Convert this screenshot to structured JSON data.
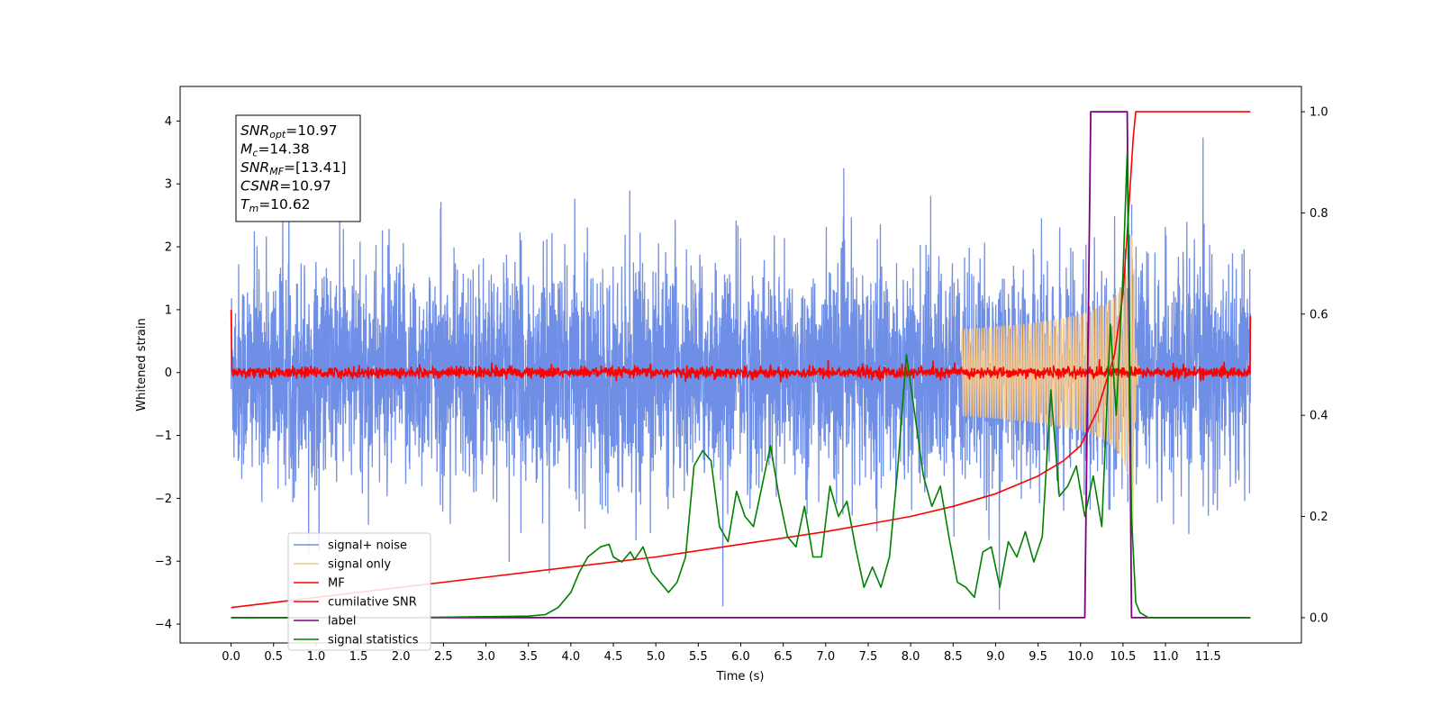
{
  "chart_data": {
    "type": "line",
    "xlabel": "Time (s)",
    "ylabel": "Whitened strain",
    "xlim": [
      -0.6,
      12.6
    ],
    "ylim": [
      -4.3,
      4.55
    ],
    "y2lim": [
      -0.05,
      1.05
    ],
    "x_ticks": [
      "0.0",
      "0.5",
      "1.0",
      "1.5",
      "2.0",
      "2.5",
      "3.0",
      "3.5",
      "4.0",
      "4.5",
      "5.0",
      "5.5",
      "6.0",
      "6.5",
      "7.0",
      "7.5",
      "8.0",
      "8.5",
      "9.0",
      "9.5",
      "10.0",
      "10.5",
      "11.0",
      "11.5"
    ],
    "y_ticks": [
      "4",
      "3",
      "2",
      "1",
      "0",
      "−1",
      "−2",
      "−3",
      "−4"
    ],
    "y2_ticks": [
      "1.0",
      "0.8",
      "0.6",
      "0.4",
      "0.2",
      "0.0"
    ],
    "grid": false,
    "legend_placement": "lower-left",
    "stats": [
      {
        "base": "SNR",
        "sub": "opt",
        "value": "=10.97"
      },
      {
        "base": "M",
        "sub": "c",
        "value": "=14.38"
      },
      {
        "base": "SNR",
        "sub": "MF",
        "value": "=[13.41]"
      },
      {
        "base": "CSNR",
        "sub": "",
        "value": "=10.97"
      },
      {
        "base": "T",
        "sub": "m",
        "value": "=10.62"
      }
    ],
    "series": [
      {
        "name": "signal+ noise",
        "color": "#6f8ee6",
        "axis": "left",
        "kind": "noise",
        "std": 0.85,
        "t_start": 0.0,
        "t_end": 12.0
      },
      {
        "name": "signal only",
        "color": "#f5c78a",
        "axis": "left",
        "kind": "chirp",
        "t_merger": 10.62,
        "peak_amplitude": 2.5
      },
      {
        "name": "MF",
        "color": "#ff0000",
        "axis": "left",
        "kind": "mf_noise",
        "std": 0.045,
        "start_value": 1.0,
        "end_value": 0.9
      },
      {
        "name": "cumilative SNR",
        "color": "#ff0000",
        "axis": "right",
        "x": [
          0.0,
          0.5,
          1.0,
          2.0,
          3.0,
          4.0,
          5.0,
          6.0,
          7.0,
          7.5,
          8.0,
          8.5,
          9.0,
          9.5,
          9.8,
          10.0,
          10.2,
          10.4,
          10.5,
          10.55,
          10.62,
          10.65,
          12.0
        ],
        "y": [
          0.02,
          0.03,
          0.04,
          0.06,
          0.08,
          0.1,
          0.12,
          0.145,
          0.17,
          0.185,
          0.2,
          0.22,
          0.245,
          0.28,
          0.31,
          0.34,
          0.41,
          0.52,
          0.64,
          0.76,
          0.95,
          1.0,
          1.0
        ]
      },
      {
        "name": "label",
        "color": "#800080",
        "axis": "right",
        "x": [
          0.0,
          10.05,
          10.12,
          10.55,
          10.6,
          12.0
        ],
        "y": [
          0.0,
          0.0,
          1.0,
          1.0,
          0.0,
          0.0
        ]
      },
      {
        "name": "signal statistics",
        "color": "#008000",
        "axis": "right",
        "x": [
          0.0,
          0.5,
          1.0,
          2.0,
          3.0,
          3.5,
          3.7,
          3.85,
          4.0,
          4.1,
          4.2,
          4.35,
          4.45,
          4.5,
          4.6,
          4.7,
          4.75,
          4.85,
          4.95,
          5.05,
          5.15,
          5.25,
          5.35,
          5.45,
          5.55,
          5.65,
          5.75,
          5.85,
          5.95,
          6.05,
          6.15,
          6.25,
          6.35,
          6.45,
          6.55,
          6.65,
          6.75,
          6.85,
          6.95,
          7.05,
          7.15,
          7.25,
          7.35,
          7.45,
          7.55,
          7.65,
          7.75,
          7.85,
          7.95,
          8.05,
          8.15,
          8.25,
          8.35,
          8.45,
          8.55,
          8.65,
          8.75,
          8.85,
          8.95,
          9.05,
          9.15,
          9.25,
          9.35,
          9.45,
          9.55,
          9.65,
          9.75,
          9.85,
          9.95,
          10.05,
          10.15,
          10.25,
          10.35,
          10.42,
          10.5,
          10.55,
          10.6,
          10.65,
          10.7,
          10.8,
          11.0,
          11.5,
          12.0
        ],
        "y": [
          0.0,
          0.0,
          0.0,
          0.0,
          0.002,
          0.003,
          0.006,
          0.02,
          0.05,
          0.09,
          0.12,
          0.14,
          0.145,
          0.12,
          0.11,
          0.13,
          0.115,
          0.14,
          0.09,
          0.07,
          0.05,
          0.07,
          0.12,
          0.3,
          0.33,
          0.31,
          0.18,
          0.15,
          0.25,
          0.2,
          0.18,
          0.26,
          0.34,
          0.24,
          0.16,
          0.14,
          0.22,
          0.12,
          0.12,
          0.26,
          0.2,
          0.23,
          0.14,
          0.06,
          0.1,
          0.06,
          0.12,
          0.3,
          0.52,
          0.4,
          0.28,
          0.22,
          0.26,
          0.16,
          0.07,
          0.06,
          0.04,
          0.13,
          0.14,
          0.06,
          0.15,
          0.12,
          0.17,
          0.11,
          0.16,
          0.45,
          0.24,
          0.26,
          0.3,
          0.2,
          0.28,
          0.18,
          0.58,
          0.4,
          0.68,
          0.92,
          0.2,
          0.03,
          0.01,
          0.0,
          0.0,
          0.0,
          0.0
        ]
      }
    ]
  }
}
